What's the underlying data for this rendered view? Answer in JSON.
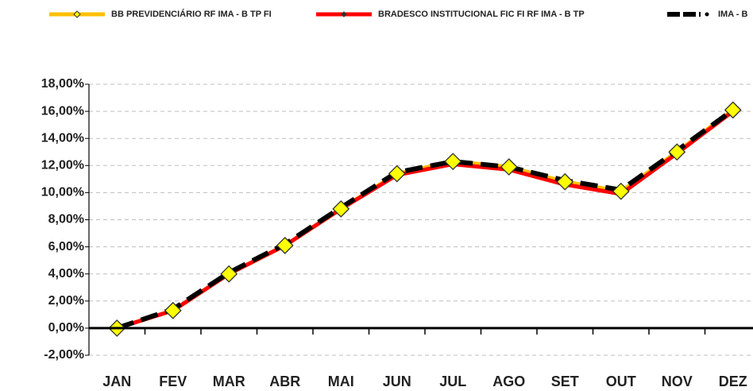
{
  "chart_data": {
    "type": "line",
    "categories": [
      "JAN",
      "FEV",
      "MAR",
      "ABR",
      "MAI",
      "JUN",
      "JUL",
      "AGO",
      "SET",
      "OUT",
      "NOV",
      "DEZ"
    ],
    "series": [
      {
        "name": "BB PREVIDENCIÁRIO RF IMA - B TP FI",
        "color": "#FFC000",
        "marker": "diamond",
        "line_style": "solid",
        "values": [
          0,
          1.3,
          4.0,
          6.1,
          8.8,
          11.4,
          12.3,
          11.9,
          10.8,
          10.1,
          13.0,
          16.1
        ]
      },
      {
        "name": "BRADESCO INSTITUCIONAL FIC FI RF IMA - B TP",
        "color": "#FF0000",
        "marker": "small-diamond",
        "line_style": "solid",
        "values": [
          0,
          1.3,
          4.0,
          6.1,
          8.8,
          11.3,
          12.1,
          11.7,
          10.6,
          9.9,
          12.9,
          16.0
        ]
      },
      {
        "name": "IMA - B",
        "color": "#000000",
        "marker": "dot",
        "line_style": "dashed",
        "values": [
          0,
          1.4,
          4.1,
          6.2,
          8.9,
          11.5,
          12.3,
          11.9,
          10.9,
          10.2,
          13.1,
          16.1
        ]
      }
    ],
    "ylim": [
      -2,
      18
    ],
    "yticks": [
      {
        "value": -2,
        "label": "-2,00%"
      },
      {
        "value": 0,
        "label": "0,00%"
      },
      {
        "value": 2,
        "label": "2,00%"
      },
      {
        "value": 4,
        "label": "4,00%"
      },
      {
        "value": 6,
        "label": "6,00%"
      },
      {
        "value": 8,
        "label": "8,00%"
      },
      {
        "value": 10,
        "label": "10,00%"
      },
      {
        "value": 12,
        "label": "12,00%"
      },
      {
        "value": 14,
        "label": "14,00%"
      },
      {
        "value": 16,
        "label": "16,00%"
      },
      {
        "value": 18,
        "label": "18,00%"
      }
    ],
    "grid": true,
    "legend": "top"
  }
}
